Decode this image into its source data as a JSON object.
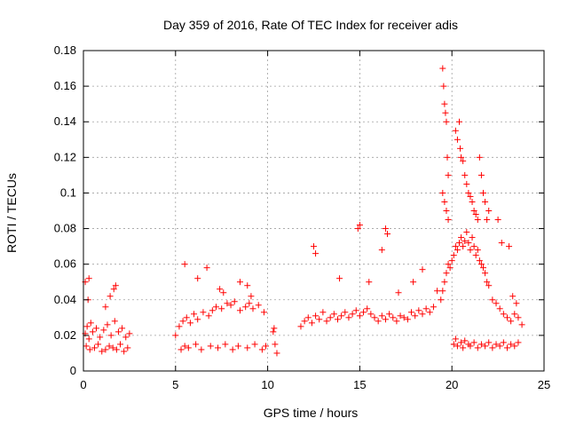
{
  "chart_data": {
    "type": "scatter",
    "title": "Day 359 of 2016, Rate Of TEC Index for receiver adis",
    "xlabel": "GPS time / hours",
    "ylabel": "ROTI / TECUs",
    "xlim": [
      0,
      25
    ],
    "ylim": [
      0,
      0.18
    ],
    "xticks": [
      0,
      5,
      10,
      15,
      20,
      25
    ],
    "xtick_labels": [
      "0",
      "5",
      "10",
      "15",
      "20",
      "25"
    ],
    "yticks": [
      0,
      0.02,
      0.04,
      0.06,
      0.08,
      0.1,
      0.12,
      0.14,
      0.16,
      0.18
    ],
    "ytick_labels": [
      "0",
      "0.02",
      "0.04",
      "0.06",
      "0.08",
      "0.1",
      "0.12",
      "0.14",
      "0.16",
      "0.18"
    ],
    "grid": true,
    "marker": "+",
    "marker_color": "#ff0000",
    "series": [
      {
        "name": "ROTI",
        "x": [
          0.1,
          0.2,
          0.3,
          0.4,
          0.5,
          0.7,
          0.9,
          1.1,
          1.3,
          1.5,
          1.7,
          1.9,
          2.1,
          2.3,
          2.5,
          0.15,
          0.35,
          0.6,
          0.8,
          1.0,
          1.2,
          1.4,
          1.6,
          1.8,
          2.0,
          2.2,
          2.4,
          0.1,
          0.25,
          1.45,
          1.65,
          1.75,
          0.3,
          1.2,
          5.0,
          5.2,
          5.4,
          5.6,
          5.8,
          6.0,
          6.2,
          6.5,
          6.8,
          7.0,
          7.2,
          7.5,
          7.8,
          8.0,
          8.2,
          8.5,
          8.8,
          9.0,
          9.2,
          9.5,
          9.8,
          5.3,
          5.5,
          5.7,
          6.1,
          6.4,
          6.9,
          7.3,
          7.7,
          8.1,
          8.4,
          8.9,
          9.3,
          9.7,
          9.9,
          5.5,
          6.2,
          6.7,
          7.4,
          7.6,
          8.5,
          8.9,
          9.1,
          10.3,
          10.4,
          10.5,
          10.35,
          11.8,
          12.0,
          12.2,
          12.4,
          12.6,
          12.8,
          13.0,
          13.2,
          13.4,
          13.6,
          13.8,
          14.0,
          14.2,
          14.4,
          14.6,
          14.8,
          15.0,
          15.2,
          15.4,
          15.6,
          15.8,
          16.0,
          16.2,
          16.4,
          16.6,
          16.8,
          17.0,
          17.2,
          17.4,
          17.6,
          17.8,
          18.0,
          18.2,
          18.4,
          18.6,
          18.8,
          19.0,
          12.5,
          12.6,
          13.9,
          14.9,
          15.0,
          15.5,
          16.2,
          16.4,
          16.5,
          17.1,
          17.9,
          18.4,
          19.2,
          19.4,
          19.5,
          19.6,
          19.7,
          19.8,
          19.9,
          20.0,
          20.1,
          20.2,
          20.3,
          20.4,
          20.5,
          20.6,
          20.7,
          20.8,
          20.9,
          21.0,
          21.1,
          21.2,
          21.3,
          21.4,
          21.5,
          21.6,
          21.7,
          21.8,
          21.9,
          22.0,
          22.2,
          22.4,
          22.6,
          22.8,
          23.0,
          23.2,
          23.4,
          23.6,
          23.8,
          19.5,
          19.55,
          19.6,
          19.65,
          19.7,
          19.75,
          19.8,
          19.5,
          19.6,
          19.7,
          19.8,
          20.2,
          20.3,
          20.4,
          20.45,
          20.5,
          20.6,
          20.7,
          20.8,
          20.9,
          21.0,
          21.1,
          21.2,
          21.3,
          21.4,
          21.5,
          21.6,
          21.7,
          21.8,
          21.9,
          22.0,
          20.1,
          20.2,
          20.3,
          20.5,
          20.6,
          20.7,
          20.9,
          21.0,
          21.2,
          21.4,
          21.6,
          21.8,
          22.0,
          22.2,
          22.4,
          22.6,
          22.8,
          23.0,
          23.2,
          23.4,
          23.6,
          22.5,
          22.7,
          23.1,
          23.3,
          23.5
        ],
        "y": [
          0.021,
          0.025,
          0.018,
          0.027,
          0.022,
          0.024,
          0.019,
          0.023,
          0.026,
          0.02,
          0.028,
          0.022,
          0.024,
          0.019,
          0.021,
          0.014,
          0.012,
          0.013,
          0.015,
          0.011,
          0.012,
          0.014,
          0.013,
          0.012,
          0.015,
          0.011,
          0.013,
          0.05,
          0.04,
          0.042,
          0.046,
          0.048,
          0.052,
          0.036,
          0.02,
          0.025,
          0.028,
          0.03,
          0.027,
          0.032,
          0.029,
          0.033,
          0.031,
          0.034,
          0.036,
          0.035,
          0.038,
          0.037,
          0.039,
          0.034,
          0.036,
          0.038,
          0.035,
          0.037,
          0.033,
          0.012,
          0.014,
          0.013,
          0.015,
          0.012,
          0.014,
          0.013,
          0.015,
          0.012,
          0.014,
          0.013,
          0.015,
          0.012,
          0.014,
          0.06,
          0.052,
          0.058,
          0.046,
          0.044,
          0.05,
          0.048,
          0.042,
          0.022,
          0.015,
          0.01,
          0.024,
          0.025,
          0.028,
          0.03,
          0.027,
          0.031,
          0.029,
          0.033,
          0.028,
          0.03,
          0.032,
          0.029,
          0.031,
          0.033,
          0.03,
          0.032,
          0.034,
          0.031,
          0.033,
          0.035,
          0.032,
          0.03,
          0.028,
          0.031,
          0.029,
          0.032,
          0.03,
          0.028,
          0.031,
          0.03,
          0.029,
          0.033,
          0.031,
          0.034,
          0.032,
          0.035,
          0.033,
          0.036,
          0.07,
          0.066,
          0.052,
          0.08,
          0.082,
          0.05,
          0.068,
          0.08,
          0.077,
          0.044,
          0.05,
          0.057,
          0.045,
          0.04,
          0.045,
          0.05,
          0.055,
          0.06,
          0.058,
          0.062,
          0.065,
          0.07,
          0.068,
          0.072,
          0.075,
          0.07,
          0.073,
          0.078,
          0.072,
          0.068,
          0.075,
          0.07,
          0.065,
          0.068,
          0.062,
          0.06,
          0.058,
          0.055,
          0.05,
          0.048,
          0.04,
          0.038,
          0.035,
          0.032,
          0.03,
          0.028,
          0.032,
          0.03,
          0.026,
          0.17,
          0.16,
          0.15,
          0.145,
          0.14,
          0.12,
          0.11,
          0.1,
          0.095,
          0.09,
          0.085,
          0.135,
          0.13,
          0.14,
          0.125,
          0.12,
          0.118,
          0.11,
          0.105,
          0.1,
          0.098,
          0.095,
          0.09,
          0.088,
          0.085,
          0.12,
          0.11,
          0.1,
          0.095,
          0.085,
          0.09,
          0.015,
          0.018,
          0.014,
          0.016,
          0.013,
          0.017,
          0.015,
          0.014,
          0.016,
          0.013,
          0.015,
          0.014,
          0.016,
          0.013,
          0.015,
          0.014,
          0.016,
          0.013,
          0.015,
          0.014,
          0.016,
          0.085,
          0.072,
          0.07,
          0.042,
          0.038
        ]
      }
    ]
  }
}
